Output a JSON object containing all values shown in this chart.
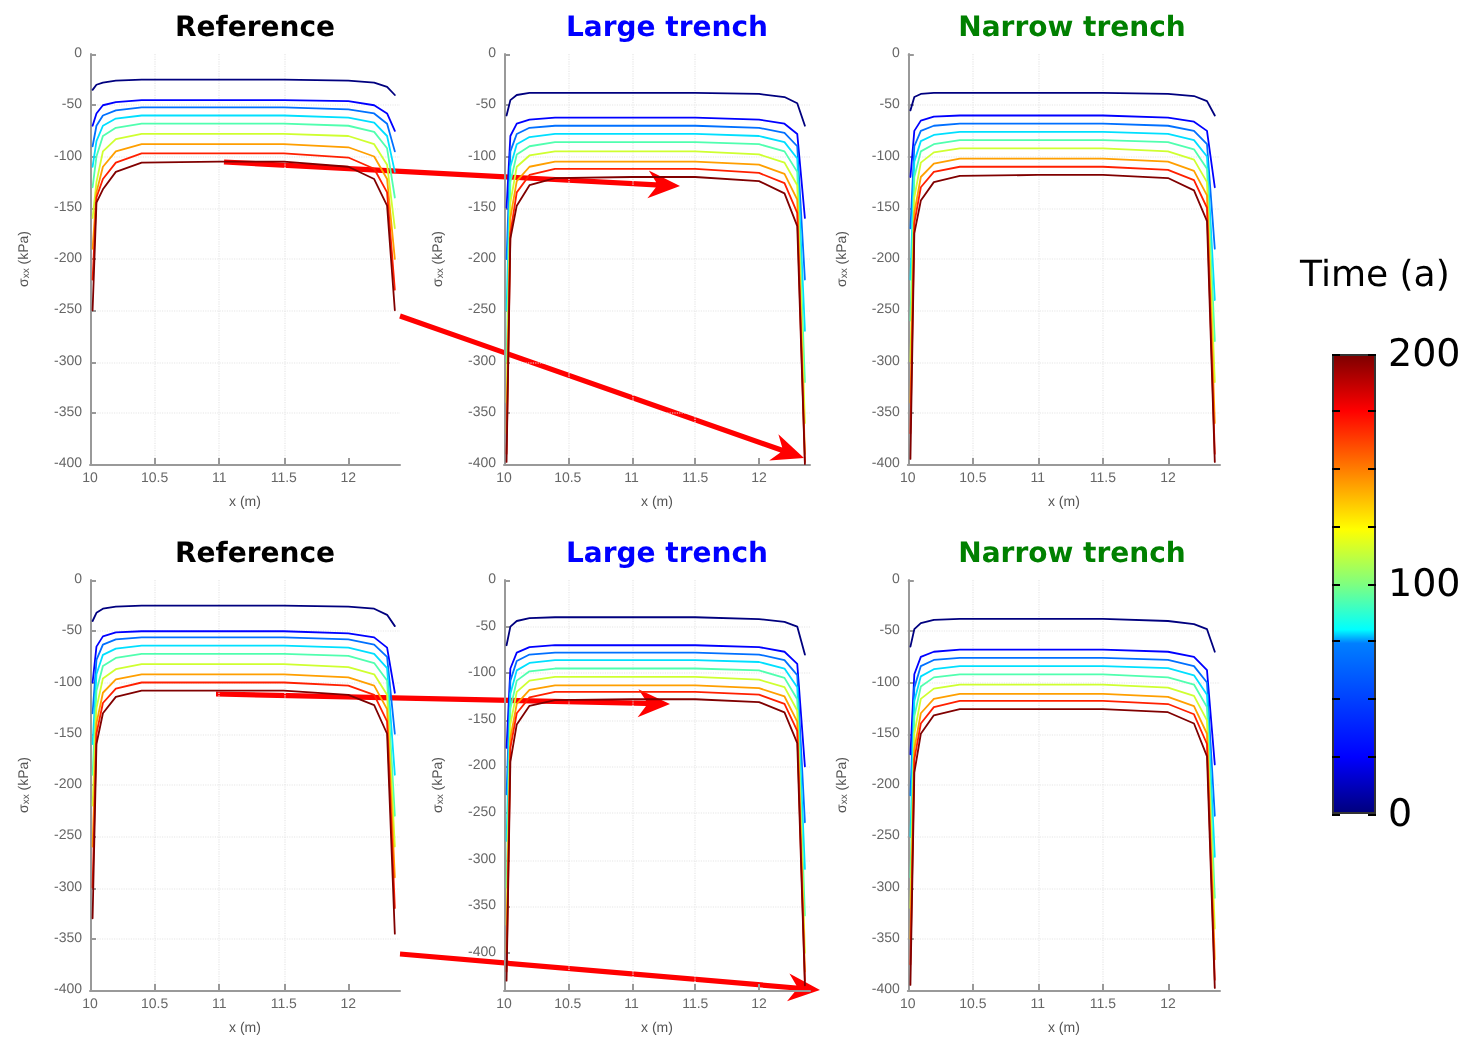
{
  "chart_data": [
    {
      "type": "line",
      "title": "Reference",
      "xlabel": "x (m)",
      "ylabel": "σ$_{xx}$ (kPa)",
      "xlim": [
        10,
        12.4
      ],
      "xticks": [
        10,
        10.5,
        11,
        11.5,
        12
      ],
      "ylim": [
        -400,
        0
      ],
      "yticks": [
        0,
        -50,
        -100,
        -150,
        -200,
        -250,
        -300,
        -350,
        -400
      ],
      "grid": true,
      "marker": "none",
      "line_style": "solid",
      "x": [
        10.02,
        10.05,
        10.1,
        10.2,
        10.4,
        11,
        11.5,
        12,
        12.2,
        12.3,
        12.36
      ],
      "series": [
        {
          "color": "#00007f",
          "values": [
            -35,
            -30,
            -28,
            -26,
            -25,
            -25,
            -25,
            -26,
            -28,
            -32,
            -40
          ]
        },
        {
          "color": "#0000ff",
          "values": [
            -70,
            -58,
            -50,
            -47,
            -45,
            -45,
            -45,
            -46,
            -50,
            -58,
            -75
          ]
        },
        {
          "color": "#0070ff",
          "values": [
            -90,
            -70,
            -60,
            -55,
            -52,
            -52,
            -52,
            -54,
            -58,
            -68,
            -95
          ]
        },
        {
          "color": "#00dfff",
          "values": [
            -110,
            -85,
            -70,
            -63,
            -60,
            -60,
            -60,
            -62,
            -67,
            -80,
            -115
          ]
        },
        {
          "color": "#50ffaf",
          "values": [
            -130,
            -100,
            -80,
            -72,
            -68,
            -68,
            -68,
            -70,
            -76,
            -92,
            -140
          ]
        },
        {
          "color": "#cfff30",
          "values": [
            -160,
            -125,
            -95,
            -83,
            -78,
            -78,
            -78,
            -80,
            -88,
            -108,
            -170
          ]
        },
        {
          "color": "#ff9f00",
          "values": [
            -190,
            -135,
            -110,
            -95,
            -88,
            -88,
            -88,
            -91,
            -100,
            -122,
            -200
          ]
        },
        {
          "color": "#ff2000",
          "values": [
            -220,
            -140,
            -122,
            -106,
            -97,
            -97,
            -97,
            -101,
            -112,
            -135,
            -230
          ]
        },
        {
          "color": "#800000",
          "values": [
            -250,
            -145,
            -132,
            -115,
            -106,
            -105,
            -105,
            -110,
            -122,
            -148,
            -250
          ]
        }
      ]
    },
    {
      "type": "line",
      "title": "Large trench",
      "xlabel": "x (m)",
      "ylabel": "σ$_{xx}$ (kPa)",
      "xlim": [
        10,
        12.4
      ],
      "xticks": [
        10,
        10.5,
        11,
        11.5,
        12
      ],
      "ylim": [
        -400,
        0
      ],
      "yticks": [
        0,
        -50,
        -100,
        -150,
        -200,
        -250,
        -300,
        -350,
        -400
      ],
      "grid": true,
      "marker": "none",
      "line_style": "solid",
      "x": [
        10.02,
        10.05,
        10.1,
        10.2,
        10.4,
        11,
        11.5,
        12,
        12.2,
        12.3,
        12.36
      ],
      "series": [
        {
          "color": "#00007f",
          "values": [
            -60,
            -45,
            -40,
            -38,
            -38,
            -38,
            -38,
            -39,
            -42,
            -48,
            -70
          ]
        },
        {
          "color": "#0000ff",
          "values": [
            -150,
            -80,
            -68,
            -64,
            -62,
            -62,
            -62,
            -64,
            -68,
            -78,
            -160
          ]
        },
        {
          "color": "#0070ff",
          "values": [
            -200,
            -95,
            -78,
            -72,
            -70,
            -70,
            -70,
            -72,
            -77,
            -90,
            -220
          ]
        },
        {
          "color": "#00dfff",
          "values": [
            -250,
            -110,
            -88,
            -81,
            -78,
            -78,
            -78,
            -80,
            -86,
            -102,
            -270
          ]
        },
        {
          "color": "#50ffaf",
          "values": [
            -300,
            -125,
            -98,
            -90,
            -86,
            -86,
            -86,
            -88,
            -95,
            -115,
            -320
          ]
        },
        {
          "color": "#cfff30",
          "values": [
            -340,
            -145,
            -110,
            -99,
            -95,
            -95,
            -95,
            -98,
            -106,
            -128,
            -360
          ]
        },
        {
          "color": "#ff9f00",
          "values": [
            -370,
            -160,
            -124,
            -110,
            -105,
            -105,
            -105,
            -108,
            -117,
            -142,
            -390
          ]
        },
        {
          "color": "#ff2000",
          "values": [
            -390,
            -175,
            -135,
            -118,
            -112,
            -112,
            -112,
            -116,
            -126,
            -155,
            -398
          ]
        },
        {
          "color": "#800000",
          "values": [
            -398,
            -180,
            -148,
            -128,
            -121,
            -120,
            -120,
            -124,
            -136,
            -168,
            -400
          ]
        }
      ]
    },
    {
      "type": "line",
      "title": "Narrow trench",
      "xlabel": "x (m)",
      "ylabel": "σ$_{xx}$ (kPa)",
      "xlim": [
        10,
        12.4
      ],
      "xticks": [
        10,
        10.5,
        11,
        11.5,
        12
      ],
      "ylim": [
        -400,
        0
      ],
      "yticks": [
        0,
        -50,
        -100,
        -150,
        -200,
        -250,
        -300,
        -350,
        -400
      ],
      "grid": true,
      "marker": "none",
      "line_style": "solid",
      "clabel": "Time (a)",
      "clim": [
        0,
        200
      ],
      "cticks": [
        0,
        {
          "value": 25,
          "label": null
        },
        {
          "value": 50,
          "label": null
        },
        {
          "value": 75,
          "label": null
        },
        100,
        {
          "value": 125,
          "label": null
        },
        {
          "value": 150,
          "label": null
        },
        {
          "value": 175,
          "label": null
        },
        200
      ],
      "x": [
        10.02,
        10.05,
        10.1,
        10.2,
        10.4,
        11,
        11.5,
        12,
        12.2,
        12.3,
        12.36
      ],
      "series": [
        {
          "color": "#00007f",
          "values": [
            -55,
            -42,
            -39,
            -38,
            -38,
            -38,
            -38,
            -39,
            -41,
            -46,
            -60
          ]
        },
        {
          "color": "#0000ff",
          "values": [
            -120,
            -75,
            -65,
            -61,
            -60,
            -60,
            -60,
            -62,
            -66,
            -75,
            -130
          ]
        },
        {
          "color": "#0070ff",
          "values": [
            -170,
            -90,
            -75,
            -70,
            -68,
            -68,
            -68,
            -70,
            -75,
            -88,
            -190
          ]
        },
        {
          "color": "#00dfff",
          "values": [
            -220,
            -105,
            -85,
            -79,
            -76,
            -76,
            -76,
            -78,
            -84,
            -100,
            -240
          ]
        },
        {
          "color": "#50ffaf",
          "values": [
            -260,
            -120,
            -95,
            -88,
            -84,
            -84,
            -84,
            -86,
            -93,
            -112,
            -280
          ]
        },
        {
          "color": "#cfff30",
          "values": [
            -300,
            -140,
            -106,
            -96,
            -92,
            -92,
            -92,
            -95,
            -103,
            -125,
            -320
          ]
        },
        {
          "color": "#ff9f00",
          "values": [
            -340,
            -155,
            -120,
            -107,
            -102,
            -102,
            -102,
            -105,
            -114,
            -138,
            -360
          ]
        },
        {
          "color": "#ff2000",
          "values": [
            -370,
            -165,
            -130,
            -115,
            -110,
            -110,
            -110,
            -113,
            -123,
            -150,
            -390
          ]
        },
        {
          "color": "#800000",
          "values": [
            -395,
            -175,
            -143,
            -125,
            -119,
            -118,
            -118,
            -121,
            -133,
            -163,
            -398
          ]
        }
      ]
    },
    {
      "type": "line",
      "title": "Reference",
      "xlabel": "x (m)",
      "ylabel": "σ$_{xx}$ (kPa)",
      "xlim": [
        10,
        12.4
      ],
      "xticks": [
        10,
        10.5,
        11,
        11.5,
        12
      ],
      "ylim": [
        -400,
        0
      ],
      "yticks": [
        0,
        -50,
        -100,
        -150,
        -200,
        -250,
        -300,
        -350,
        -400
      ],
      "grid": true,
      "marker": "none",
      "line_style": "solid",
      "x": [
        10.02,
        10.05,
        10.1,
        10.2,
        10.4,
        11,
        11.5,
        12,
        12.2,
        12.3,
        12.36
      ],
      "series": [
        {
          "color": "#00007f",
          "values": [
            -40,
            -32,
            -28,
            -26,
            -25,
            -25,
            -25,
            -26,
            -28,
            -34,
            -45
          ]
        },
        {
          "color": "#0000ff",
          "values": [
            -100,
            -65,
            -55,
            -51,
            -50,
            -50,
            -50,
            -52,
            -56,
            -66,
            -110
          ]
        },
        {
          "color": "#0070ff",
          "values": [
            -130,
            -78,
            -63,
            -58,
            -56,
            -56,
            -56,
            -58,
            -63,
            -75,
            -150
          ]
        },
        {
          "color": "#00dfff",
          "values": [
            -160,
            -92,
            -73,
            -67,
            -64,
            -64,
            -64,
            -66,
            -72,
            -86,
            -190
          ]
        },
        {
          "color": "#50ffaf",
          "values": [
            -190,
            -108,
            -84,
            -76,
            -72,
            -72,
            -72,
            -74,
            -81,
            -98,
            -230
          ]
        },
        {
          "color": "#cfff30",
          "values": [
            -220,
            -125,
            -96,
            -87,
            -82,
            -82,
            -82,
            -85,
            -92,
            -112,
            -260
          ]
        },
        {
          "color": "#ff9f00",
          "values": [
            -260,
            -140,
            -110,
            -97,
            -92,
            -92,
            -92,
            -95,
            -103,
            -126,
            -290
          ]
        },
        {
          "color": "#ff2000",
          "values": [
            -300,
            -150,
            -120,
            -106,
            -100,
            -100,
            -100,
            -103,
            -112,
            -138,
            -320
          ]
        },
        {
          "color": "#800000",
          "values": [
            -330,
            -160,
            -130,
            -114,
            -108,
            -108,
            -108,
            -112,
            -122,
            -150,
            -345
          ]
        }
      ]
    },
    {
      "type": "line",
      "title": "Large trench",
      "xlabel": "x (m)",
      "ylabel": "σ$_{xx}$ (kPa)",
      "xlim": [
        10,
        12.4
      ],
      "xticks": [
        10,
        10.5,
        11,
        11.5,
        12
      ],
      "ylim": [
        -440,
        0
      ],
      "yticks": [
        0,
        -50,
        -100,
        -150,
        -200,
        -250,
        -300,
        -350,
        -400
      ],
      "grid": true,
      "marker": "none",
      "line_style": "solid",
      "x": [
        10.02,
        10.05,
        10.1,
        10.2,
        10.4,
        11,
        11.5,
        12,
        12.2,
        12.3,
        12.36
      ],
      "series": [
        {
          "color": "#00007f",
          "values": [
            -70,
            -50,
            -44,
            -41,
            -40,
            -40,
            -40,
            -42,
            -45,
            -50,
            -80
          ]
        },
        {
          "color": "#0000ff",
          "values": [
            -180,
            -95,
            -78,
            -72,
            -70,
            -70,
            -70,
            -72,
            -77,
            -90,
            -200
          ]
        },
        {
          "color": "#0070ff",
          "values": [
            -230,
            -108,
            -87,
            -80,
            -78,
            -78,
            -78,
            -80,
            -86,
            -102,
            -260
          ]
        },
        {
          "color": "#00dfff",
          "values": [
            -280,
            -122,
            -97,
            -89,
            -86,
            -86,
            -86,
            -88,
            -95,
            -115,
            -310
          ]
        },
        {
          "color": "#50ffaf",
          "values": [
            -330,
            -138,
            -108,
            -98,
            -95,
            -95,
            -95,
            -97,
            -105,
            -128,
            -360
          ]
        },
        {
          "color": "#cfff30",
          "values": [
            -370,
            -155,
            -120,
            -108,
            -104,
            -104,
            -104,
            -107,
            -115,
            -140,
            -400
          ]
        },
        {
          "color": "#ff9f00",
          "values": [
            -400,
            -170,
            -133,
            -118,
            -113,
            -113,
            -113,
            -116,
            -125,
            -152,
            -420
          ]
        },
        {
          "color": "#ff2000",
          "values": [
            -420,
            -180,
            -143,
            -126,
            -120,
            -120,
            -120,
            -123,
            -133,
            -162,
            -430
          ]
        },
        {
          "color": "#800000",
          "values": [
            -430,
            -195,
            -155,
            -135,
            -129,
            -128,
            -128,
            -131,
            -142,
            -175,
            -435
          ]
        }
      ]
    },
    {
      "type": "line",
      "title": "Narrow trench",
      "xlabel": "x (m)",
      "ylabel": "σ$_{xx}$ (kPa)",
      "xlim": [
        10,
        12.4
      ],
      "xticks": [
        10,
        10.5,
        11,
        11.5,
        12
      ],
      "ylim": [
        -400,
        0
      ],
      "yticks": [
        0,
        -50,
        -100,
        -150,
        -200,
        -250,
        -300,
        -350,
        -400
      ],
      "grid": true,
      "marker": "none",
      "line_style": "solid",
      "x": [
        10.02,
        10.05,
        10.1,
        10.2,
        10.4,
        11,
        11.5,
        12,
        12.2,
        12.3,
        12.36
      ],
      "series": [
        {
          "color": "#00007f",
          "values": [
            -65,
            -48,
            -42,
            -39,
            -38,
            -38,
            -38,
            -40,
            -43,
            -48,
            -70
          ]
        },
        {
          "color": "#0000ff",
          "values": [
            -170,
            -92,
            -75,
            -70,
            -68,
            -68,
            -68,
            -70,
            -75,
            -88,
            -180
          ]
        },
        {
          "color": "#0070ff",
          "values": [
            -210,
            -105,
            -84,
            -78,
            -76,
            -76,
            -76,
            -78,
            -84,
            -100,
            -230
          ]
        },
        {
          "color": "#00dfff",
          "values": [
            -250,
            -118,
            -94,
            -87,
            -84,
            -84,
            -84,
            -86,
            -93,
            -112,
            -270
          ]
        },
        {
          "color": "#50ffaf",
          "values": [
            -290,
            -133,
            -104,
            -95,
            -92,
            -92,
            -92,
            -95,
            -102,
            -124,
            -310
          ]
        },
        {
          "color": "#cfff30",
          "values": [
            -320,
            -150,
            -116,
            -106,
            -102,
            -102,
            -102,
            -105,
            -113,
            -137,
            -340
          ]
        },
        {
          "color": "#ff9f00",
          "values": [
            -350,
            -165,
            -130,
            -116,
            -111,
            -111,
            -111,
            -114,
            -123,
            -150,
            -370
          ]
        },
        {
          "color": "#ff2000",
          "values": [
            -375,
            -175,
            -140,
            -124,
            -118,
            -118,
            -118,
            -121,
            -131,
            -160,
            -390
          ]
        },
        {
          "color": "#800000",
          "values": [
            -395,
            -188,
            -150,
            -132,
            -126,
            -126,
            -126,
            -129,
            -140,
            -172,
            -398
          ]
        }
      ]
    }
  ]
}
